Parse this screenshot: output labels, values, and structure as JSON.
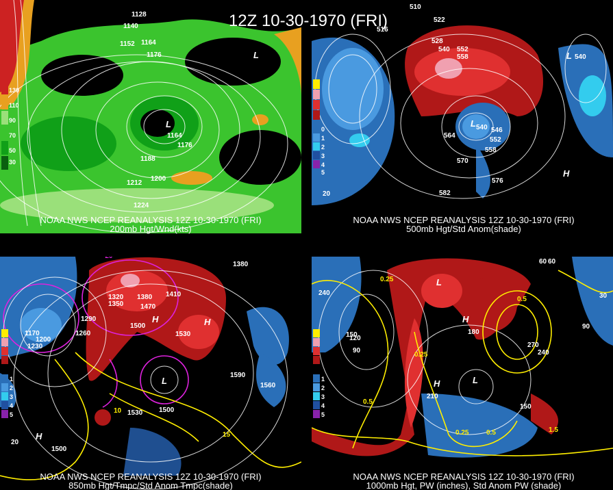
{
  "title": "12Z 10-30-1970 (FRI)",
  "panels": [
    {
      "caption": [
        "NOAA NWS NCEP REANALYSIS 12Z 10-30-1970 (FRI)",
        "200mb Hgt/Wnd(kts)"
      ],
      "legend": [
        "130",
        "110",
        "90",
        "70",
        "50",
        "30"
      ],
      "labels": [
        "1128",
        "1140",
        "1152",
        "1164",
        "1176",
        "L",
        "1164",
        "1176",
        "1188",
        "1200",
        "1212",
        "1224",
        "L"
      ]
    },
    {
      "caption": [
        "NOAA NWS NCEP REANALYSIS 12Z 10-30-1970 (FRI)",
        "500mb Hgt/Std Anom(shade)"
      ],
      "legend": [
        "0",
        "1",
        "2",
        "3",
        "4",
        "5"
      ],
      "labels": [
        "510",
        "516",
        "522",
        "528",
        "540",
        "552",
        "558",
        "L",
        "540",
        "552",
        "558",
        "546",
        "564",
        "570",
        "576",
        "582",
        "H",
        "L",
        "540",
        "20"
      ]
    },
    {
      "caption": [
        "NOAA NWS NCEP REANALYSIS 12Z 10-30-1970 (FRI)",
        "850mb Hgt/Tmpc/Std Anom Tmpc(shade)"
      ],
      "legend": [
        "1",
        "2",
        "3",
        "4",
        "5"
      ],
      "labels": [
        "-20",
        "1350",
        "1380",
        "1320",
        "1350",
        "1380",
        "1410",
        "1470",
        "1290",
        "1260",
        "1230",
        "1200",
        "1170",
        "1500",
        "1530",
        "1560",
        "1590",
        "H",
        "H",
        "L",
        "1500",
        "1530",
        "10",
        "15",
        "H",
        "1500",
        "20"
      ]
    },
    {
      "caption": [
        "NOAA NWS NCEP REANALYSIS 12Z 10-30-1970 (FRI)",
        "1000mb Hgt, PW (inches), Std Anom PW (shade)"
      ],
      "legend": [
        "1",
        "2",
        "3",
        "4",
        "5"
      ],
      "labels": [
        "60",
        "0.25",
        "240",
        "90",
        "120",
        "150",
        "180",
        "210",
        "240",
        "270",
        "0.5",
        "0.25",
        "1.5",
        "H",
        "L",
        "H",
        "L",
        "0.5",
        "0.25",
        "0.5",
        "150",
        "60",
        "30",
        "90"
      ]
    }
  ]
}
